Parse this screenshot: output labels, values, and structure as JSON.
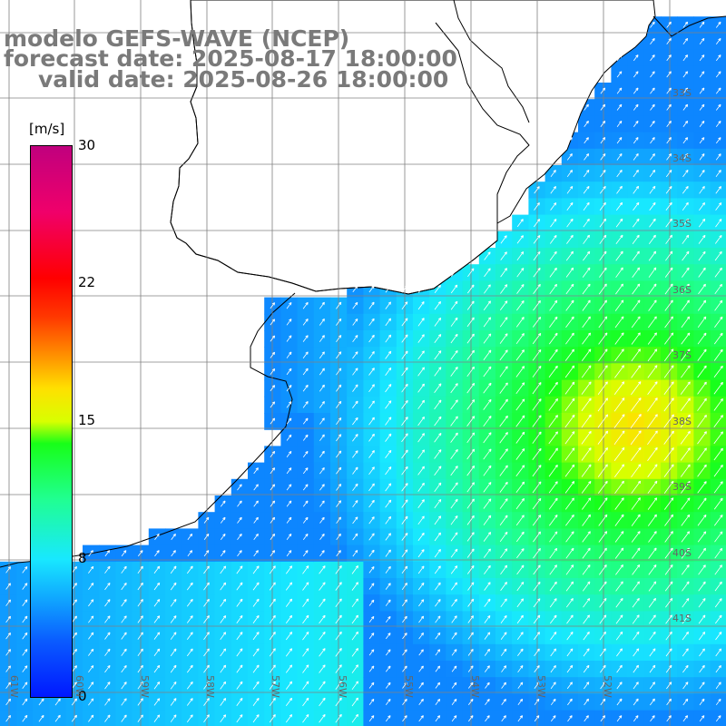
{
  "title": {
    "line1": "modelo GEFS-WAVE (NCEP)",
    "line2": "forecast date: 2025-08-17 18:00:00",
    "line3": "valid date: 2025-08-26 18:00:00"
  },
  "colors": {
    "title_text": "#7a7a7a",
    "land": "#ffffff",
    "coast": "#000000",
    "grid": "#808080",
    "arrow": "#ffffff",
    "no_data": "#ffffff"
  },
  "colorbar": {
    "unit_label": "[m/s]",
    "min": 0,
    "max": 30,
    "ticks": [
      "30",
      "22",
      "15",
      "8",
      "0"
    ],
    "tick_values": [
      30,
      22,
      15,
      8,
      0
    ]
  },
  "map": {
    "lat_labels": [
      "33S",
      "34S",
      "35S",
      "36S",
      "37S",
      "38S",
      "39S",
      "40S",
      "41S"
    ],
    "lon_labels": [
      "61W",
      "60W",
      "59W",
      "58W",
      "57W",
      "56W",
      "55W",
      "54W",
      "53W",
      "52W"
    ],
    "field": "wind speed at 10m with wind direction arrows",
    "wind_direction": "from SW toward NE"
  }
}
